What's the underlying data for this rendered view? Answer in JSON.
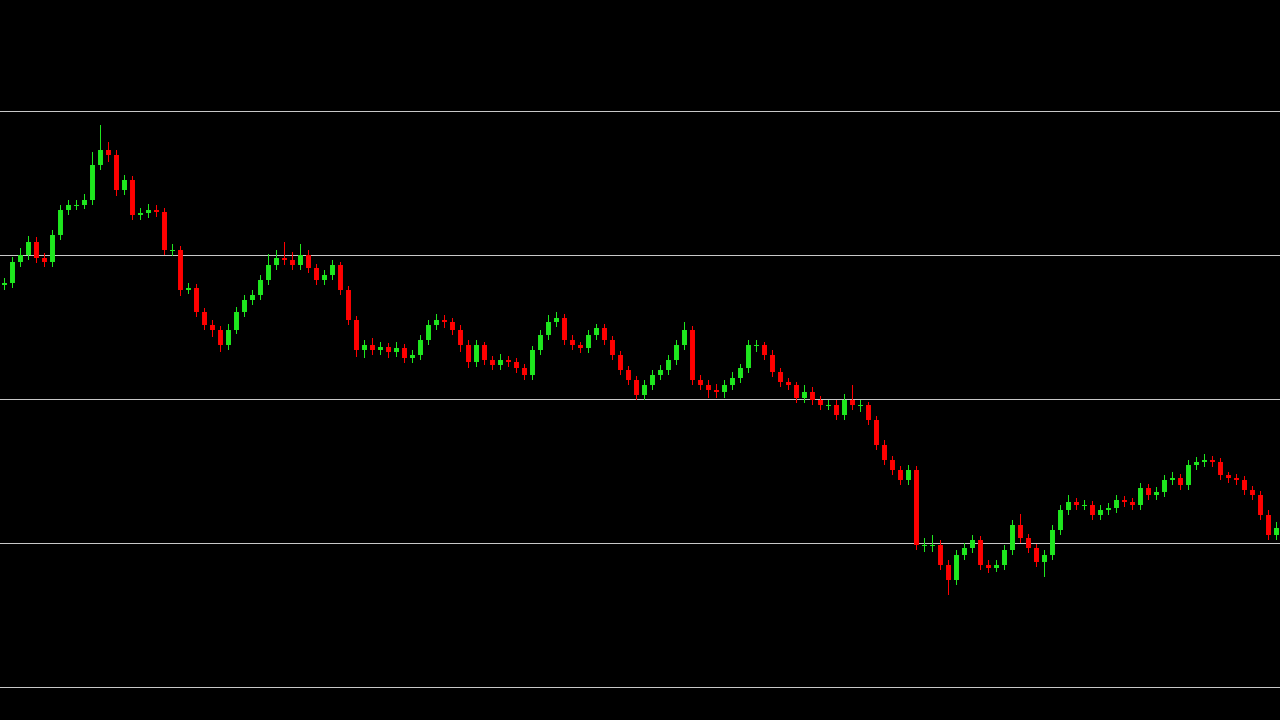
{
  "chart_data": {
    "type": "candlestick",
    "background": "#000000",
    "grid": true,
    "grid_color": "#c8c8c8",
    "up_color": "#1ee61e",
    "down_color": "#ff0000",
    "ylim": [
      0,
      720
    ],
    "yticks": [
      33,
      177,
      321,
      465,
      609
    ],
    "open": [
      435,
      437,
      458,
      465,
      478,
      462,
      458,
      485,
      510,
      515,
      515,
      520,
      555,
      570,
      565,
      530,
      540,
      505,
      507,
      510,
      508,
      470,
      470,
      430,
      432,
      408,
      395,
      390,
      375,
      390,
      408,
      420,
      425,
      440,
      455,
      462,
      460,
      455,
      465,
      452,
      440,
      445,
      455,
      430,
      400,
      370,
      375,
      370,
      373,
      368,
      372,
      362,
      365,
      380,
      395,
      400,
      398,
      390,
      375,
      358,
      375,
      360,
      355,
      360,
      358,
      352,
      345,
      370,
      385,
      398,
      402,
      380,
      375,
      372,
      385,
      392,
      380,
      365,
      350,
      340,
      325,
      335,
      345,
      350,
      360,
      375,
      390,
      340,
      335,
      330,
      328,
      335,
      342,
      352,
      375,
      375,
      365,
      348,
      338,
      335,
      322,
      328,
      320,
      315,
      315,
      305,
      320,
      315,
      315,
      300,
      275,
      260,
      250,
      240,
      250,
      175,
      175,
      175,
      155,
      140,
      165,
      172,
      180,
      155,
      152,
      155,
      170,
      195,
      182,
      172,
      158,
      165,
      190,
      210,
      218,
      215,
      215,
      205,
      210,
      212,
      220,
      218,
      215,
      232,
      225,
      228,
      240,
      242,
      235,
      255,
      258,
      260,
      258,
      245,
      242,
      240,
      230,
      225,
      205,
      185
    ],
    "high": [
      442,
      463,
      472,
      484,
      483,
      467,
      490,
      515,
      520,
      520,
      526,
      568,
      595,
      578,
      570,
      545,
      544,
      512,
      516,
      515,
      512,
      476,
      474,
      437,
      436,
      412,
      400,
      394,
      396,
      413,
      425,
      430,
      445,
      466,
      470,
      478,
      468,
      476,
      470,
      456,
      450,
      460,
      458,
      434,
      404,
      380,
      382,
      378,
      377,
      378,
      376,
      370,
      385,
      400,
      406,
      405,
      402,
      395,
      380,
      380,
      378,
      364,
      366,
      364,
      362,
      356,
      374,
      390,
      405,
      408,
      406,
      385,
      378,
      390,
      396,
      396,
      384,
      369,
      354,
      344,
      340,
      350,
      355,
      365,
      380,
      398,
      394,
      345,
      340,
      336,
      340,
      348,
      356,
      380,
      380,
      378,
      370,
      352,
      342,
      338,
      335,
      333,
      324,
      320,
      320,
      326,
      335,
      320,
      318,
      304,
      280,
      264,
      254,
      255,
      254,
      182,
      185,
      180,
      160,
      170,
      177,
      185,
      184,
      160,
      160,
      175,
      200,
      206,
      186,
      176,
      170,
      195,
      215,
      225,
      222,
      220,
      219,
      215,
      217,
      225,
      224,
      222,
      237,
      236,
      233,
      245,
      248,
      246,
      260,
      263,
      266,
      264,
      262,
      248,
      246,
      244,
      234,
      229,
      210,
      198
    ],
    "low": [
      430,
      432,
      453,
      460,
      457,
      453,
      453,
      480,
      505,
      510,
      511,
      515,
      550,
      558,
      524,
      525,
      500,
      500,
      502,
      503,
      465,
      464,
      424,
      426,
      403,
      390,
      383,
      368,
      370,
      386,
      403,
      415,
      420,
      435,
      450,
      455,
      450,
      450,
      447,
      435,
      435,
      440,
      425,
      395,
      363,
      362,
      365,
      365,
      362,
      363,
      357,
      357,
      360,
      375,
      390,
      392,
      385,
      368,
      352,
      353,
      355,
      350,
      350,
      353,
      347,
      340,
      340,
      365,
      380,
      393,
      375,
      370,
      367,
      367,
      380,
      375,
      360,
      345,
      335,
      320,
      320,
      330,
      340,
      345,
      355,
      370,
      335,
      330,
      322,
      322,
      322,
      330,
      337,
      347,
      368,
      360,
      343,
      333,
      330,
      317,
      317,
      315,
      310,
      310,
      300,
      300,
      310,
      308,
      295,
      270,
      255,
      245,
      235,
      235,
      170,
      168,
      168,
      150,
      125,
      135,
      160,
      167,
      150,
      147,
      148,
      150,
      165,
      177,
      167,
      153,
      143,
      160,
      185,
      205,
      210,
      210,
      200,
      200,
      205,
      207,
      213,
      210,
      210,
      220,
      220,
      223,
      235,
      230,
      230,
      250,
      253,
      253,
      240,
      237,
      235,
      225,
      220,
      200,
      180,
      180
    ],
    "close": [
      437,
      458,
      465,
      478,
      462,
      458,
      485,
      510,
      515,
      515,
      520,
      555,
      570,
      565,
      530,
      540,
      505,
      507,
      510,
      508,
      470,
      470,
      430,
      432,
      408,
      395,
      390,
      375,
      390,
      408,
      420,
      425,
      440,
      455,
      462,
      460,
      455,
      465,
      452,
      440,
      445,
      455,
      430,
      400,
      370,
      375,
      370,
      373,
      368,
      372,
      362,
      365,
      380,
      395,
      400,
      398,
      390,
      375,
      358,
      375,
      360,
      355,
      360,
      358,
      352,
      345,
      370,
      385,
      398,
      402,
      380,
      375,
      372,
      385,
      392,
      380,
      365,
      350,
      340,
      325,
      335,
      345,
      350,
      360,
      375,
      390,
      340,
      335,
      330,
      328,
      335,
      342,
      352,
      375,
      375,
      365,
      348,
      338,
      335,
      322,
      328,
      320,
      315,
      315,
      305,
      320,
      315,
      315,
      300,
      275,
      260,
      250,
      240,
      250,
      175,
      175,
      175,
      155,
      140,
      165,
      172,
      180,
      155,
      152,
      155,
      170,
      195,
      182,
      172,
      158,
      165,
      190,
      210,
      218,
      215,
      215,
      205,
      210,
      212,
      220,
      218,
      215,
      232,
      225,
      228,
      240,
      242,
      235,
      255,
      258,
      260,
      258,
      245,
      242,
      240,
      230,
      225,
      205,
      185,
      192
    ]
  }
}
